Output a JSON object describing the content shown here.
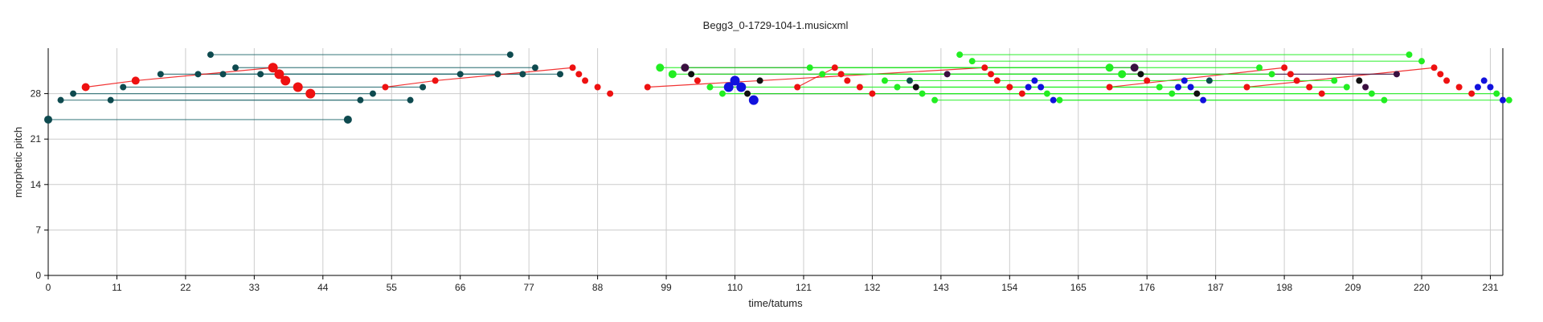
{
  "chart_data": {
    "type": "scatter",
    "title": "Begg3_0-1729-104-1.musicxml",
    "xlabel": "time/tatums",
    "ylabel": "morphetic pitch",
    "xlim": [
      0,
      233
    ],
    "ylim": [
      0,
      35
    ],
    "xticks": [
      0,
      11,
      22,
      33,
      44,
      55,
      66,
      77,
      88,
      99,
      110,
      121,
      132,
      143,
      154,
      165,
      176,
      187,
      198,
      209,
      220,
      231
    ],
    "yticks": [
      0,
      7,
      14,
      21,
      28
    ],
    "grid": true,
    "colors": {
      "teal": "#0e4a4f",
      "teal_line": "#2a6f73",
      "red": "#ee1111",
      "green": "#22ee22",
      "blue": "#1111dd",
      "black": "#111111",
      "purple": "#3a1040",
      "grid": "#cccccc"
    },
    "connections": [
      {
        "color": "teal",
        "from": [
          0,
          24
        ],
        "to": [
          48,
          24
        ]
      },
      {
        "color": "teal",
        "from": [
          2,
          27
        ],
        "to": [
          50,
          27
        ]
      },
      {
        "color": "teal",
        "from": [
          4,
          28
        ],
        "to": [
          52,
          28
        ]
      },
      {
        "color": "teal",
        "from": [
          10,
          27
        ],
        "to": [
          58,
          27
        ]
      },
      {
        "color": "teal",
        "from": [
          12,
          29
        ],
        "to": [
          60,
          29
        ]
      },
      {
        "color": "teal",
        "from": [
          18,
          31
        ],
        "to": [
          66,
          31
        ]
      },
      {
        "color": "teal",
        "from": [
          24,
          31
        ],
        "to": [
          72,
          31
        ]
      },
      {
        "color": "teal",
        "from": [
          26,
          34
        ],
        "to": [
          74,
          34
        ]
      },
      {
        "color": "teal",
        "from": [
          28,
          31
        ],
        "to": [
          76,
          31
        ]
      },
      {
        "color": "teal",
        "from": [
          30,
          32
        ],
        "to": [
          78,
          32
        ]
      },
      {
        "color": "teal",
        "from": [
          34,
          31
        ],
        "to": [
          82,
          31
        ]
      },
      {
        "color": "red",
        "from": [
          6,
          29
        ],
        "to": [
          14,
          30
        ]
      },
      {
        "color": "red",
        "from": [
          14,
          30
        ],
        "to": [
          36,
          32
        ]
      },
      {
        "color": "red",
        "from": [
          54,
          29
        ],
        "to": [
          62,
          30
        ]
      },
      {
        "color": "red",
        "from": [
          62,
          30
        ],
        "to": [
          84,
          32
        ]
      },
      {
        "color": "red",
        "from": [
          96,
          29
        ],
        "to": [
          150,
          32
        ]
      },
      {
        "color": "red",
        "from": [
          120,
          29
        ],
        "to": [
          126,
          32
        ]
      },
      {
        "color": "red",
        "from": [
          170,
          29
        ],
        "to": [
          198,
          32
        ]
      },
      {
        "color": "red",
        "from": [
          192,
          29
        ],
        "to": [
          222,
          32
        ]
      },
      {
        "color": "purple",
        "from": [
          102,
          32
        ],
        "to": [
          174,
          32
        ]
      },
      {
        "color": "purple",
        "from": [
          104,
          31
        ],
        "to": [
          176,
          31
        ]
      },
      {
        "color": "purple",
        "from": [
          113,
          28
        ],
        "to": [
          185,
          28
        ]
      },
      {
        "color": "purple",
        "from": [
          144,
          31
        ],
        "to": [
          216,
          31
        ]
      },
      {
        "color": "green",
        "from": [
          98,
          32
        ],
        "to": [
          170,
          32
        ]
      },
      {
        "color": "green",
        "from": [
          100,
          31
        ],
        "to": [
          172,
          31
        ]
      },
      {
        "color": "green",
        "from": [
          106,
          29
        ],
        "to": [
          178,
          29
        ]
      },
      {
        "color": "green",
        "from": [
          108,
          28
        ],
        "to": [
          180,
          28
        ]
      },
      {
        "color": "green",
        "from": [
          122,
          32
        ],
        "to": [
          194,
          32
        ]
      },
      {
        "color": "green",
        "from": [
          124,
          31
        ],
        "to": [
          196,
          31
        ]
      },
      {
        "color": "green",
        "from": [
          134,
          30
        ],
        "to": [
          206,
          30
        ]
      },
      {
        "color": "green",
        "from": [
          136,
          29
        ],
        "to": [
          208,
          29
        ]
      },
      {
        "color": "green",
        "from": [
          140,
          28
        ],
        "to": [
          212,
          28
        ]
      },
      {
        "color": "green",
        "from": [
          142,
          27
        ],
        "to": [
          214,
          27
        ]
      },
      {
        "color": "green",
        "from": [
          146,
          34
        ],
        "to": [
          218,
          34
        ]
      },
      {
        "color": "green",
        "from": [
          148,
          33
        ],
        "to": [
          220,
          33
        ]
      },
      {
        "color": "green",
        "from": [
          160,
          28
        ],
        "to": [
          232,
          28
        ]
      },
      {
        "color": "green",
        "from": [
          162,
          27
        ],
        "to": [
          234,
          27
        ]
      }
    ],
    "points": [
      {
        "x": 0,
        "y": 24,
        "color": "teal",
        "size": 5
      },
      {
        "x": 2,
        "y": 27,
        "color": "teal",
        "size": 4
      },
      {
        "x": 4,
        "y": 28,
        "color": "teal",
        "size": 4
      },
      {
        "x": 6,
        "y": 29,
        "color": "red",
        "size": 5
      },
      {
        "x": 10,
        "y": 27,
        "color": "teal",
        "size": 4
      },
      {
        "x": 12,
        "y": 29,
        "color": "teal",
        "size": 4
      },
      {
        "x": 14,
        "y": 30,
        "color": "red",
        "size": 5
      },
      {
        "x": 18,
        "y": 31,
        "color": "teal",
        "size": 4
      },
      {
        "x": 24,
        "y": 31,
        "color": "teal",
        "size": 4
      },
      {
        "x": 26,
        "y": 34,
        "color": "teal",
        "size": 4
      },
      {
        "x": 28,
        "y": 31,
        "color": "teal",
        "size": 4
      },
      {
        "x": 30,
        "y": 32,
        "color": "teal",
        "size": 4
      },
      {
        "x": 34,
        "y": 31,
        "color": "teal",
        "size": 4
      },
      {
        "x": 36,
        "y": 32,
        "color": "red",
        "size": 6
      },
      {
        "x": 37,
        "y": 31,
        "color": "red",
        "size": 6
      },
      {
        "x": 38,
        "y": 30,
        "color": "red",
        "size": 6
      },
      {
        "x": 40,
        "y": 29,
        "color": "red",
        "size": 6
      },
      {
        "x": 42,
        "y": 28,
        "color": "red",
        "size": 6
      },
      {
        "x": 48,
        "y": 24,
        "color": "teal",
        "size": 5
      },
      {
        "x": 50,
        "y": 27,
        "color": "teal",
        "size": 4
      },
      {
        "x": 52,
        "y": 28,
        "color": "teal",
        "size": 4
      },
      {
        "x": 54,
        "y": 29,
        "color": "red",
        "size": 4
      },
      {
        "x": 58,
        "y": 27,
        "color": "teal",
        "size": 4
      },
      {
        "x": 60,
        "y": 29,
        "color": "teal",
        "size": 4
      },
      {
        "x": 62,
        "y": 30,
        "color": "red",
        "size": 4
      },
      {
        "x": 66,
        "y": 31,
        "color": "teal",
        "size": 4
      },
      {
        "x": 72,
        "y": 31,
        "color": "teal",
        "size": 4
      },
      {
        "x": 74,
        "y": 34,
        "color": "teal",
        "size": 4
      },
      {
        "x": 76,
        "y": 31,
        "color": "teal",
        "size": 4
      },
      {
        "x": 78,
        "y": 32,
        "color": "teal",
        "size": 4
      },
      {
        "x": 82,
        "y": 31,
        "color": "teal",
        "size": 4
      },
      {
        "x": 84,
        "y": 32,
        "color": "red",
        "size": 4
      },
      {
        "x": 85,
        "y": 31,
        "color": "red",
        "size": 4
      },
      {
        "x": 86,
        "y": 30,
        "color": "red",
        "size": 4
      },
      {
        "x": 88,
        "y": 29,
        "color": "red",
        "size": 4
      },
      {
        "x": 90,
        "y": 28,
        "color": "red",
        "size": 4
      },
      {
        "x": 96,
        "y": 29,
        "color": "red",
        "size": 4
      },
      {
        "x": 98,
        "y": 32,
        "color": "green",
        "size": 5
      },
      {
        "x": 100,
        "y": 31,
        "color": "green",
        "size": 5
      },
      {
        "x": 102,
        "y": 32,
        "color": "purple",
        "size": 5
      },
      {
        "x": 103,
        "y": 31,
        "color": "black",
        "size": 4
      },
      {
        "x": 104,
        "y": 30,
        "color": "red",
        "size": 4
      },
      {
        "x": 106,
        "y": 29,
        "color": "green",
        "size": 4
      },
      {
        "x": 108,
        "y": 28,
        "color": "green",
        "size": 4
      },
      {
        "x": 109,
        "y": 29,
        "color": "blue",
        "size": 6
      },
      {
        "x": 110,
        "y": 30,
        "color": "blue",
        "size": 6
      },
      {
        "x": 111,
        "y": 29,
        "color": "blue",
        "size": 6
      },
      {
        "x": 112,
        "y": 28,
        "color": "black",
        "size": 4
      },
      {
        "x": 113,
        "y": 27,
        "color": "blue",
        "size": 6
      },
      {
        "x": 114,
        "y": 30,
        "color": "black",
        "size": 4
      },
      {
        "x": 120,
        "y": 29,
        "color": "red",
        "size": 4
      },
      {
        "x": 122,
        "y": 32,
        "color": "green",
        "size": 4
      },
      {
        "x": 124,
        "y": 31,
        "color": "green",
        "size": 4
      },
      {
        "x": 126,
        "y": 32,
        "color": "red",
        "size": 4
      },
      {
        "x": 127,
        "y": 31,
        "color": "red",
        "size": 4
      },
      {
        "x": 128,
        "y": 30,
        "color": "red",
        "size": 4
      },
      {
        "x": 130,
        "y": 29,
        "color": "red",
        "size": 4
      },
      {
        "x": 132,
        "y": 28,
        "color": "red",
        "size": 4
      },
      {
        "x": 134,
        "y": 30,
        "color": "green",
        "size": 4
      },
      {
        "x": 136,
        "y": 29,
        "color": "green",
        "size": 4
      },
      {
        "x": 138,
        "y": 30,
        "color": "teal",
        "size": 4
      },
      {
        "x": 139,
        "y": 29,
        "color": "black",
        "size": 4
      },
      {
        "x": 140,
        "y": 28,
        "color": "green",
        "size": 4
      },
      {
        "x": 142,
        "y": 27,
        "color": "green",
        "size": 4
      },
      {
        "x": 144,
        "y": 31,
        "color": "purple",
        "size": 4
      },
      {
        "x": 146,
        "y": 34,
        "color": "green",
        "size": 4
      },
      {
        "x": 148,
        "y": 33,
        "color": "green",
        "size": 4
      },
      {
        "x": 150,
        "y": 32,
        "color": "red",
        "size": 4
      },
      {
        "x": 151,
        "y": 31,
        "color": "red",
        "size": 4
      },
      {
        "x": 152,
        "y": 30,
        "color": "red",
        "size": 4
      },
      {
        "x": 154,
        "y": 29,
        "color": "red",
        "size": 4
      },
      {
        "x": 156,
        "y": 28,
        "color": "red",
        "size": 4
      },
      {
        "x": 157,
        "y": 29,
        "color": "blue",
        "size": 4
      },
      {
        "x": 158,
        "y": 30,
        "color": "blue",
        "size": 4
      },
      {
        "x": 159,
        "y": 29,
        "color": "blue",
        "size": 4
      },
      {
        "x": 160,
        "y": 28,
        "color": "green",
        "size": 4
      },
      {
        "x": 161,
        "y": 27,
        "color": "blue",
        "size": 4
      },
      {
        "x": 162,
        "y": 27,
        "color": "green",
        "size": 4
      },
      {
        "x": 170,
        "y": 29,
        "color": "red",
        "size": 4
      },
      {
        "x": 170,
        "y": 32,
        "color": "green",
        "size": 5
      },
      {
        "x": 172,
        "y": 31,
        "color": "green",
        "size": 5
      },
      {
        "x": 174,
        "y": 32,
        "color": "purple",
        "size": 5
      },
      {
        "x": 175,
        "y": 31,
        "color": "black",
        "size": 4
      },
      {
        "x": 176,
        "y": 30,
        "color": "red",
        "size": 4
      },
      {
        "x": 178,
        "y": 29,
        "color": "green",
        "size": 4
      },
      {
        "x": 180,
        "y": 28,
        "color": "green",
        "size": 4
      },
      {
        "x": 181,
        "y": 29,
        "color": "blue",
        "size": 4
      },
      {
        "x": 182,
        "y": 30,
        "color": "blue",
        "size": 4
      },
      {
        "x": 183,
        "y": 29,
        "color": "blue",
        "size": 4
      },
      {
        "x": 184,
        "y": 28,
        "color": "black",
        "size": 4
      },
      {
        "x": 185,
        "y": 27,
        "color": "blue",
        "size": 4
      },
      {
        "x": 186,
        "y": 30,
        "color": "teal",
        "size": 4
      },
      {
        "x": 192,
        "y": 29,
        "color": "red",
        "size": 4
      },
      {
        "x": 194,
        "y": 32,
        "color": "green",
        "size": 4
      },
      {
        "x": 196,
        "y": 31,
        "color": "green",
        "size": 4
      },
      {
        "x": 198,
        "y": 32,
        "color": "red",
        "size": 4
      },
      {
        "x": 199,
        "y": 31,
        "color": "red",
        "size": 4
      },
      {
        "x": 200,
        "y": 30,
        "color": "red",
        "size": 4
      },
      {
        "x": 202,
        "y": 29,
        "color": "red",
        "size": 4
      },
      {
        "x": 204,
        "y": 28,
        "color": "red",
        "size": 4
      },
      {
        "x": 206,
        "y": 30,
        "color": "green",
        "size": 4
      },
      {
        "x": 208,
        "y": 29,
        "color": "green",
        "size": 4
      },
      {
        "x": 210,
        "y": 30,
        "color": "black",
        "size": 4
      },
      {
        "x": 211,
        "y": 29,
        "color": "purple",
        "size": 4
      },
      {
        "x": 212,
        "y": 28,
        "color": "green",
        "size": 4
      },
      {
        "x": 214,
        "y": 27,
        "color": "green",
        "size": 4
      },
      {
        "x": 216,
        "y": 31,
        "color": "purple",
        "size": 4
      },
      {
        "x": 218,
        "y": 34,
        "color": "green",
        "size": 4
      },
      {
        "x": 220,
        "y": 33,
        "color": "green",
        "size": 4
      },
      {
        "x": 222,
        "y": 32,
        "color": "red",
        "size": 4
      },
      {
        "x": 223,
        "y": 31,
        "color": "red",
        "size": 4
      },
      {
        "x": 224,
        "y": 30,
        "color": "red",
        "size": 4
      },
      {
        "x": 226,
        "y": 29,
        "color": "red",
        "size": 4
      },
      {
        "x": 228,
        "y": 28,
        "color": "red",
        "size": 4
      },
      {
        "x": 229,
        "y": 29,
        "color": "blue",
        "size": 4
      },
      {
        "x": 230,
        "y": 30,
        "color": "blue",
        "size": 4
      },
      {
        "x": 231,
        "y": 29,
        "color": "blue",
        "size": 4
      },
      {
        "x": 232,
        "y": 28,
        "color": "green",
        "size": 4
      },
      {
        "x": 233,
        "y": 27,
        "color": "blue",
        "size": 4
      },
      {
        "x": 234,
        "y": 27,
        "color": "green",
        "size": 4
      }
    ]
  }
}
